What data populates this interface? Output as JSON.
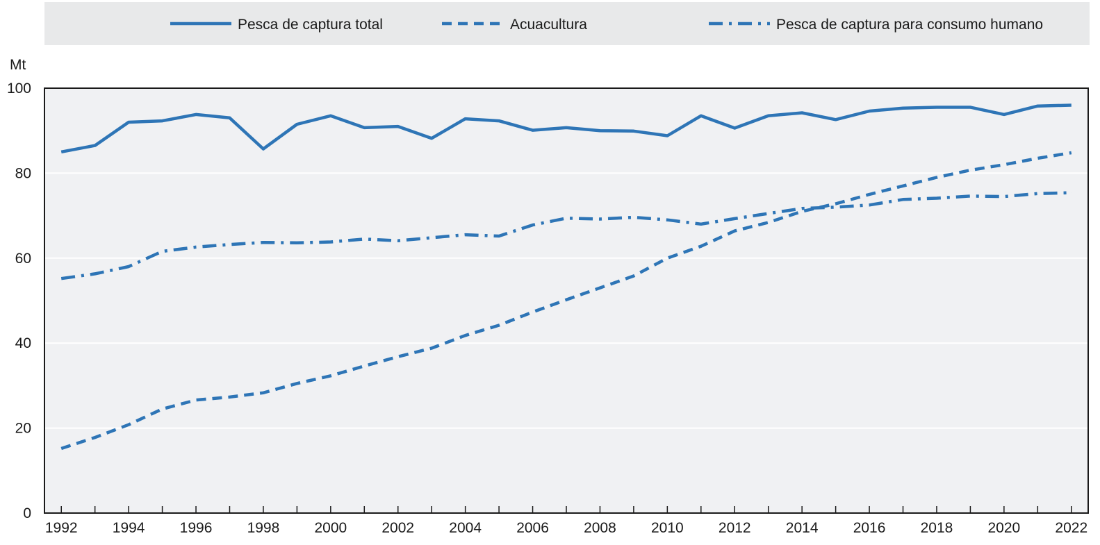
{
  "chart_data": {
    "type": "line",
    "ylabel": "Mt",
    "ylim": [
      0,
      100
    ],
    "yticks": [
      0,
      20,
      40,
      60,
      80,
      100
    ],
    "xlim": [
      1991.5,
      2022.5
    ],
    "xticks": [
      1992,
      1994,
      1996,
      1998,
      2000,
      2002,
      2004,
      2006,
      2008,
      2010,
      2012,
      2014,
      2016,
      2018,
      2020,
      2022
    ],
    "grid": true,
    "legend_position": "top",
    "x": [
      1992,
      1993,
      1994,
      1995,
      1996,
      1997,
      1998,
      1999,
      2000,
      2001,
      2002,
      2003,
      2004,
      2005,
      2006,
      2007,
      2008,
      2009,
      2010,
      2011,
      2012,
      2013,
      2014,
      2015,
      2016,
      2017,
      2018,
      2019,
      2020,
      2021,
      2022
    ],
    "series": [
      {
        "name": "Pesca de captura total",
        "style": "solid",
        "color": "#2e75b6",
        "values": [
          85.0,
          86.5,
          92.0,
          92.3,
          93.8,
          93.0,
          85.7,
          91.5,
          93.5,
          90.7,
          91.0,
          88.2,
          92.8,
          92.3,
          90.1,
          90.7,
          90.0,
          89.9,
          88.8,
          93.5,
          90.6,
          93.5,
          94.2,
          92.6,
          94.6,
          95.3,
          95.5,
          95.5,
          93.8,
          95.8,
          96.0
        ]
      },
      {
        "name": "Acuacultura",
        "style": "dashed",
        "color": "#2e75b6",
        "values": [
          15.2,
          17.8,
          20.8,
          24.5,
          26.6,
          27.3,
          28.3,
          30.5,
          32.3,
          34.6,
          36.8,
          38.8,
          41.8,
          44.2,
          47.3,
          50.2,
          53.0,
          55.8,
          60.0,
          62.8,
          66.4,
          68.4,
          71.0,
          72.8,
          75.0,
          77.0,
          79.0,
          80.7,
          82.0,
          83.5,
          84.8
        ]
      },
      {
        "name": "Pesca de captura para consumo humano",
        "style": "dashdot",
        "color": "#2e75b6",
        "values": [
          55.2,
          56.3,
          58.0,
          61.6,
          62.6,
          63.2,
          63.7,
          63.6,
          63.8,
          64.5,
          64.1,
          64.8,
          65.5,
          65.2,
          67.8,
          69.4,
          69.2,
          69.6,
          69.0,
          68.0,
          69.3,
          70.5,
          71.7,
          72.0,
          72.5,
          73.8,
          74.1,
          74.6,
          74.5,
          75.2,
          75.4
        ]
      }
    ]
  }
}
